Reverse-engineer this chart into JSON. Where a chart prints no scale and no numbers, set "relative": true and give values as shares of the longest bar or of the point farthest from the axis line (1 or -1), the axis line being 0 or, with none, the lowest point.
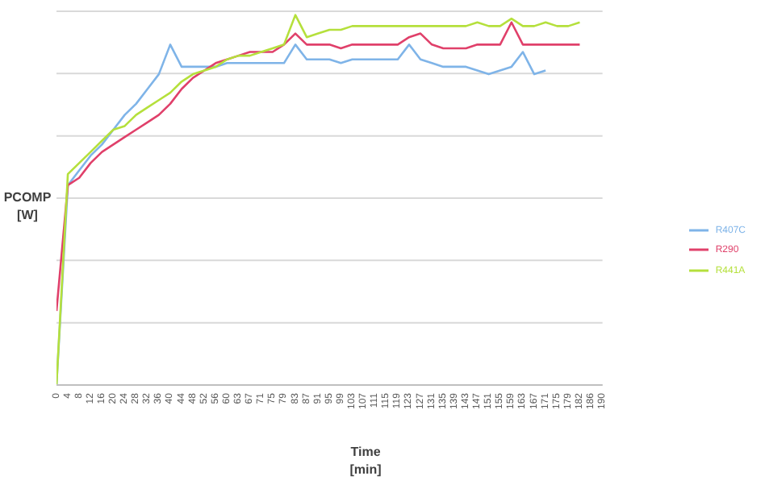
{
  "chart_data": {
    "type": "line",
    "xlabel": "Time\n[min]",
    "ylabel": "PCOMP\n[W]",
    "relative": true,
    "grid": "y",
    "legend": "right",
    "marker": "none",
    "line_style": "solid",
    "categories": [
      "0",
      "4",
      "8",
      "12",
      "16",
      "20",
      "24",
      "28",
      "32",
      "36",
      "40",
      "44",
      "48",
      "52",
      "56",
      "60",
      "63",
      "67",
      "71",
      "75",
      "79",
      "83",
      "87",
      "91",
      "95",
      "99",
      "103",
      "107",
      "111",
      "115",
      "119",
      "123",
      "127",
      "131",
      "135",
      "139",
      "143",
      "147",
      "151",
      "155",
      "159",
      "163",
      "167",
      "171",
      "175",
      "179",
      "182",
      "186",
      "190"
    ],
    "series": [
      {
        "name": "R407C",
        "color": "#7fb4e8",
        "values": [
          0,
          0.54,
          0.58,
          0.62,
          0.65,
          0.69,
          0.73,
          0.76,
          0.8,
          0.84,
          0.92,
          0.86,
          0.86,
          0.86,
          0.86,
          0.87,
          0.87,
          0.87,
          0.87,
          0.87,
          0.87,
          0.92,
          0.88,
          0.88,
          0.88,
          0.87,
          0.88,
          0.88,
          0.88,
          0.88,
          0.88,
          0.92,
          0.88,
          0.87,
          0.86,
          0.86,
          0.86,
          0.85,
          0.84,
          0.85,
          0.86,
          0.9,
          0.84,
          0.85,
          null,
          null,
          null,
          null,
          null
        ]
      },
      {
        "name": "R290",
        "color": "#e0406a",
        "values": [
          0.2,
          0.54,
          0.56,
          0.6,
          0.63,
          0.65,
          0.67,
          0.69,
          0.71,
          0.73,
          0.76,
          0.8,
          0.83,
          0.85,
          0.87,
          0.88,
          0.89,
          0.9,
          0.9,
          0.9,
          0.92,
          0.95,
          0.92,
          0.92,
          0.92,
          0.91,
          0.92,
          0.92,
          0.92,
          0.92,
          0.92,
          0.94,
          0.95,
          0.92,
          0.91,
          0.91,
          0.91,
          0.92,
          0.92,
          0.92,
          0.98,
          0.92,
          0.92,
          0.92,
          0.92,
          0.92,
          0.92,
          null,
          null
        ]
      },
      {
        "name": "R441A",
        "color": "#b5e03c",
        "values": [
          0,
          0.57,
          0.6,
          0.63,
          0.66,
          0.69,
          0.7,
          0.73,
          0.75,
          0.77,
          0.79,
          0.82,
          0.84,
          0.85,
          0.86,
          0.88,
          0.89,
          0.89,
          0.9,
          0.91,
          0.92,
          1.0,
          0.94,
          0.95,
          0.96,
          0.96,
          0.97,
          0.97,
          0.97,
          0.97,
          0.97,
          0.97,
          0.97,
          0.97,
          0.97,
          0.97,
          0.97,
          0.98,
          0.97,
          0.97,
          0.99,
          0.97,
          0.97,
          0.98,
          0.97,
          0.97,
          0.98,
          null,
          null
        ]
      }
    ]
  }
}
